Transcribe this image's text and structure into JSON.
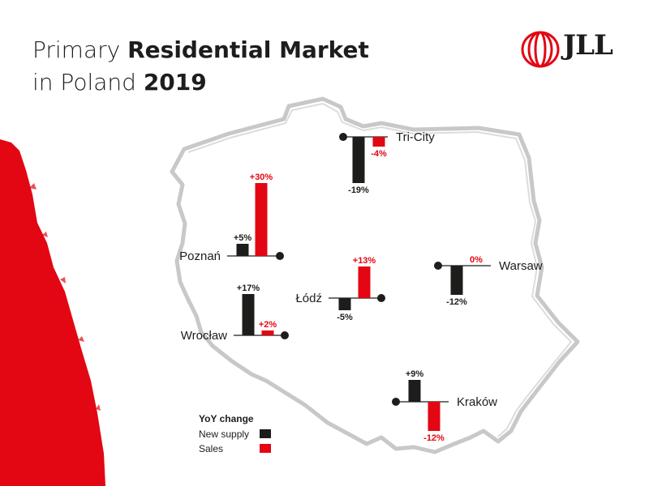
{
  "title": {
    "line1_light": "Primary ",
    "line1_bold": "Residential Market",
    "line2_light": "in Poland ",
    "line2_bold": "2019"
  },
  "logo_text": "JLL",
  "colors": {
    "new_supply": "#1d1d1b",
    "sales": "#e30613",
    "map_outline": "#c8c8c8",
    "text": "#1d1d1b"
  },
  "legend": {
    "title": "YoY change",
    "items": [
      {
        "label": "New supply",
        "color": "#1d1d1b"
      },
      {
        "label": "Sales",
        "color": "#e30613"
      }
    ]
  },
  "chart_data": {
    "type": "bar",
    "categories": [
      "Tri-City",
      "Poznań",
      "Łódź",
      "Warsaw",
      "Wrocław",
      "Kraków"
    ],
    "series": [
      {
        "name": "New supply",
        "values": [
          -19,
          5,
          -5,
          -12,
          17,
          9
        ],
        "labels": [
          "-19%",
          "+5%",
          "-5%",
          "-12%",
          "+17%",
          "+9%"
        ]
      },
      {
        "name": "Sales",
        "values": [
          -4,
          30,
          13,
          0,
          2,
          -12
        ],
        "labels": [
          "-4%",
          "+30%",
          "+13%",
          "0%",
          "+2%",
          "-12%"
        ]
      }
    ],
    "ylabel": "",
    "title": ""
  }
}
